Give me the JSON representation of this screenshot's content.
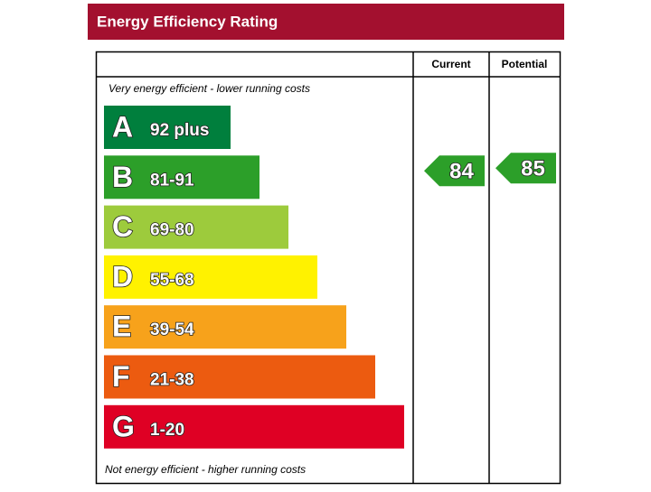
{
  "header": {
    "title": "Energy Efficiency Rating"
  },
  "columns": {
    "current": "Current",
    "potential": "Potential"
  },
  "top_note": "Very energy efficient - lower running costs",
  "bottom_note": "Not energy efficient - higher running costs",
  "bands": [
    {
      "letter": "A",
      "range": "92 plus",
      "color": "#007f3d"
    },
    {
      "letter": "B",
      "range": "81-91",
      "color": "#2c9f29"
    },
    {
      "letter": "C",
      "range": "69-80",
      "color": "#9dcb3c"
    },
    {
      "letter": "D",
      "range": "55-68",
      "color": "#fff200"
    },
    {
      "letter": "E",
      "range": "39-54",
      "color": "#f7a21b"
    },
    {
      "letter": "F",
      "range": "21-38",
      "color": "#ec5b10"
    },
    {
      "letter": "G",
      "range": "1-20",
      "color": "#df0024"
    }
  ],
  "current": {
    "value": 84,
    "band": "B"
  },
  "potential": {
    "value": 85,
    "band": "B"
  }
}
